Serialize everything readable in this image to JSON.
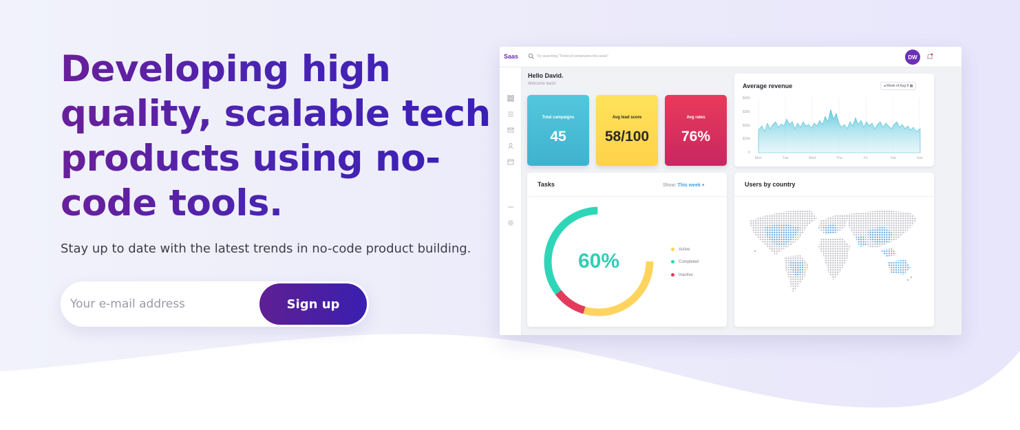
{
  "hero": {
    "headline_lines": [
      "Developing high",
      "quality, scalable tech",
      "products using no-",
      "code tools."
    ],
    "subtitle": "Stay up to date with the latest trends in no-code product building.",
    "email_placeholder": "Your e-mail address",
    "signup_label": "Sign up"
  },
  "dashboard": {
    "logo": "Saas",
    "search_placeholder": "Try searching \"Trend of conversions this week\"",
    "avatar_initials": "DW",
    "greeting": "Hello David.",
    "greeting_sub": "Welcome back!",
    "sidebar_icons": [
      "grid-icon",
      "list-icon",
      "mail-icon",
      "user-icon",
      "calendar-icon",
      "minus-icon",
      "gear-icon"
    ],
    "stats": [
      {
        "label": "Total campaigns",
        "value": "45",
        "color": "#47c1d8"
      },
      {
        "label": "Avg lead score",
        "value": "58/100",
        "color": "#ffd94a"
      },
      {
        "label": "Avg rates",
        "value": "76%",
        "color": "#e4375c"
      }
    ],
    "revenue": {
      "title": "Average revenue",
      "week_label": "Week of Aug 8",
      "y_ticks": [
        "$40k",
        "$30k",
        "$20k",
        "$10k",
        "0"
      ],
      "x_ticks": [
        "Mon",
        "Tue",
        "Wed",
        "Thu",
        "Fri",
        "Sat",
        "Sun"
      ]
    },
    "tasks": {
      "title": "Tasks",
      "show_label": "Show:",
      "show_value": "This week",
      "percent": "60%",
      "legend": [
        {
          "label": "Active",
          "color": "#ffd45e"
        },
        {
          "label": "Completed",
          "color": "#2ed6b7"
        },
        {
          "label": "Inactive",
          "color": "#e43a5c"
        }
      ]
    },
    "countries": {
      "title": "Users by country"
    }
  },
  "colors": {
    "brand_purple": "#5f1f93",
    "brand_indigo": "#3a1fb0"
  }
}
